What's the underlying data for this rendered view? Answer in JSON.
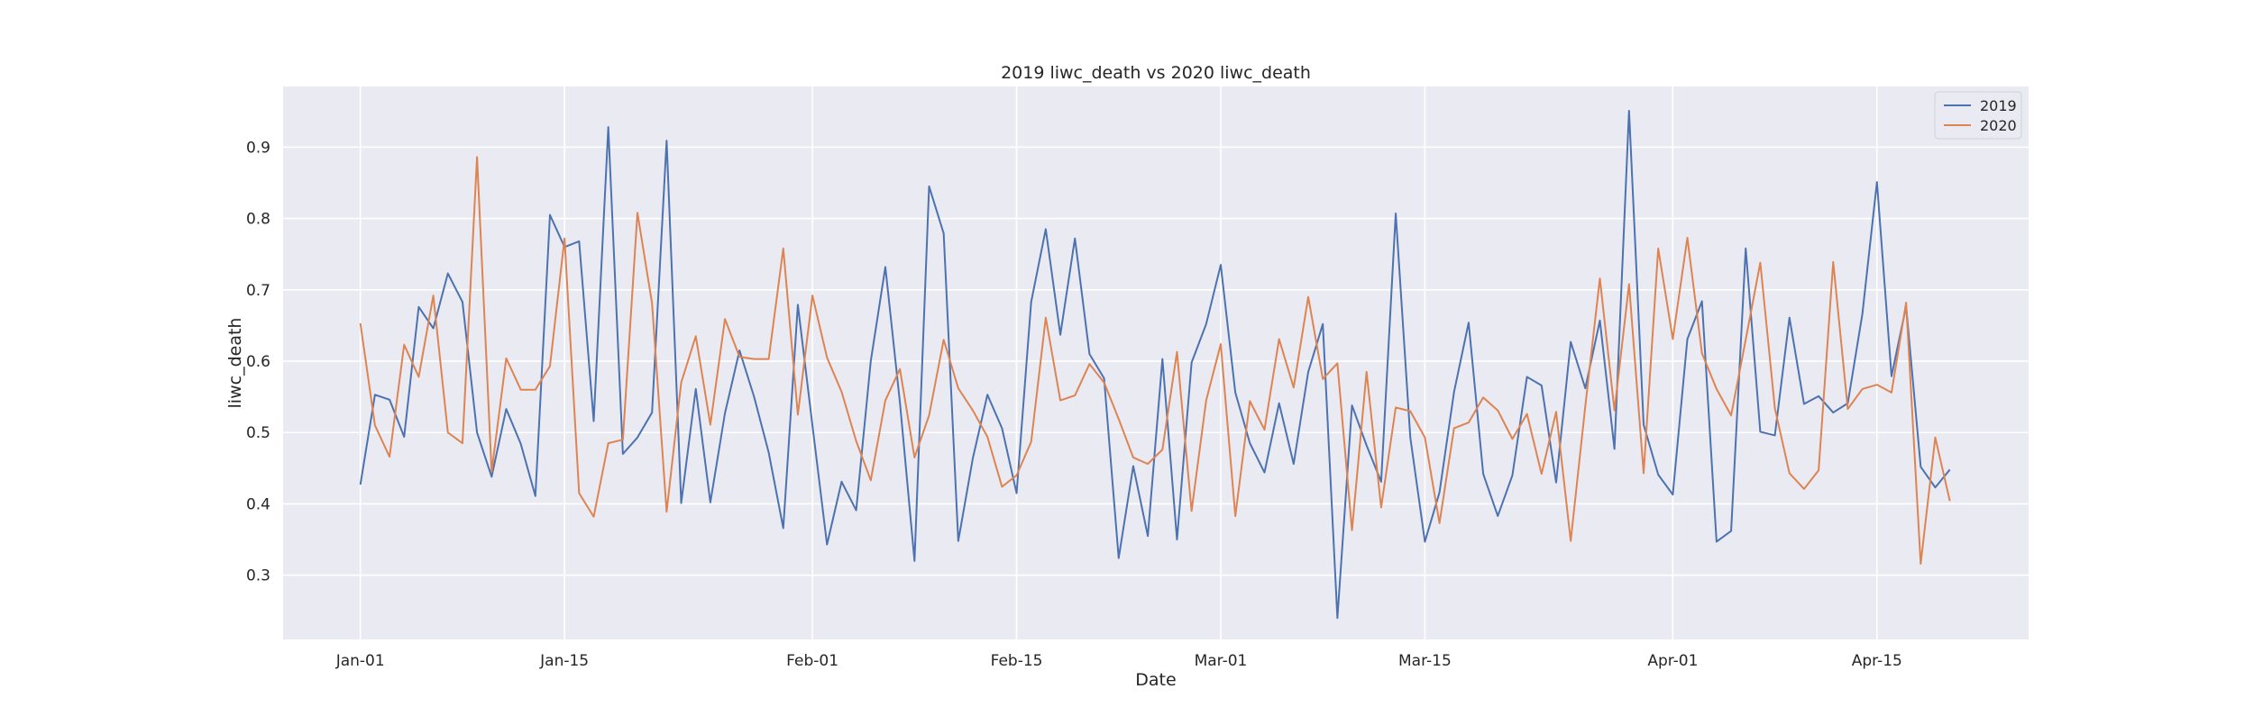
{
  "chart_data": {
    "type": "line",
    "title": "2019 liwc_death vs 2020 liwc_death",
    "xlabel": "Date",
    "ylabel": "liwc_death",
    "x_ticks": [
      "Jan-01",
      "Jan-15",
      "Feb-01",
      "Feb-15",
      "Mar-01",
      "Mar-15",
      "Apr-01",
      "Apr-15"
    ],
    "x_tick_days": [
      0,
      14,
      31,
      45,
      59,
      73,
      90,
      104
    ],
    "xlim_days": [
      -5.3,
      114.4
    ],
    "y_ticks": [
      0.3,
      0.4,
      0.5,
      0.6,
      0.7,
      0.8,
      0.9
    ],
    "ylim": [
      0.21,
      0.985
    ],
    "grid": true,
    "legend_position": "top-right",
    "series": [
      {
        "name": "2019",
        "color": "#4c72b0",
        "values": [
          0.427,
          0.553,
          0.546,
          0.494,
          0.676,
          0.646,
          0.723,
          0.683,
          0.5,
          0.438,
          0.533,
          0.484,
          0.411,
          0.805,
          0.76,
          0.768,
          0.516,
          0.928,
          0.47,
          0.493,
          0.528,
          0.909,
          0.401,
          0.561,
          0.402,
          0.527,
          0.615,
          0.55,
          0.472,
          0.366,
          0.679,
          0.51,
          0.343,
          0.431,
          0.391,
          0.6,
          0.732,
          0.542,
          0.32,
          0.845,
          0.779,
          0.348,
          0.464,
          0.553,
          0.506,
          0.415,
          0.683,
          0.785,
          0.637,
          0.772,
          0.61,
          0.576,
          0.324,
          0.453,
          0.355,
          0.603,
          0.35,
          0.598,
          0.652,
          0.735,
          0.556,
          0.485,
          0.444,
          0.541,
          0.456,
          0.585,
          0.652,
          0.24,
          0.538,
          0.482,
          0.431,
          0.807,
          0.493,
          0.347,
          0.416,
          0.557,
          0.654,
          0.442,
          0.383,
          0.44,
          0.578,
          0.566,
          0.43,
          0.627,
          0.562,
          0.657,
          0.477,
          0.951,
          0.511,
          0.441,
          0.413,
          0.631,
          0.684,
          0.347,
          0.362,
          0.758,
          0.501,
          0.496,
          0.661,
          0.54,
          0.551,
          0.528,
          0.541,
          0.666,
          0.851,
          0.579,
          0.677,
          0.452,
          0.423,
          0.448
        ]
      },
      {
        "name": "2020",
        "color": "#dd8452",
        "values": [
          0.653,
          0.51,
          0.466,
          0.623,
          0.578,
          0.692,
          0.5,
          0.485,
          0.886,
          0.445,
          0.604,
          0.56,
          0.56,
          0.593,
          0.772,
          0.415,
          0.382,
          0.485,
          0.49,
          0.808,
          0.681,
          0.389,
          0.57,
          0.635,
          0.511,
          0.659,
          0.606,
          0.603,
          0.603,
          0.758,
          0.525,
          0.692,
          0.605,
          0.557,
          0.488,
          0.433,
          0.545,
          0.589,
          0.465,
          0.524,
          0.63,
          0.562,
          0.531,
          0.494,
          0.424,
          0.44,
          0.487,
          0.661,
          0.545,
          0.552,
          0.596,
          0.57,
          0.519,
          0.465,
          0.456,
          0.476,
          0.613,
          0.39,
          0.545,
          0.624,
          0.383,
          0.544,
          0.504,
          0.631,
          0.563,
          0.69,
          0.575,
          0.597,
          0.363,
          0.585,
          0.395,
          0.535,
          0.53,
          0.493,
          0.373,
          0.506,
          0.514,
          0.549,
          0.531,
          0.491,
          0.526,
          0.442,
          0.529,
          0.348,
          0.537,
          0.716,
          0.531,
          0.708,
          0.443,
          0.758,
          0.631,
          0.773,
          0.611,
          0.561,
          0.524,
          0.63,
          0.738,
          0.534,
          0.443,
          0.421,
          0.447,
          0.739,
          0.533,
          0.561,
          0.567,
          0.556,
          0.682,
          0.316,
          0.493,
          0.404
        ]
      }
    ]
  }
}
